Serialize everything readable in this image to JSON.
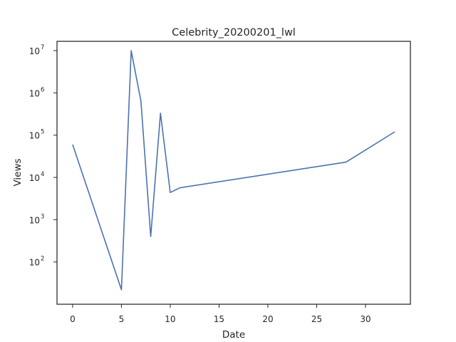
{
  "chart_data": {
    "type": "line",
    "title": "Celebrity_20200201_lwl",
    "xlabel": "Date",
    "ylabel": "Views",
    "yscale": "log",
    "xlim": [
      -1.6,
      34.6
    ],
    "ylim_log10": [
      1.0,
      7.22
    ],
    "xticks": [
      0,
      5,
      10,
      15,
      20,
      25,
      30
    ],
    "yticks": [
      {
        "base": "10",
        "exp": "2",
        "log10": 2
      },
      {
        "base": "10",
        "exp": "3",
        "log10": 3
      },
      {
        "base": "10",
        "exp": "4",
        "log10": 4
      },
      {
        "base": "10",
        "exp": "5",
        "log10": 5
      },
      {
        "base": "10",
        "exp": "6",
        "log10": 6
      },
      {
        "base": "10",
        "exp": "7",
        "log10": 7
      }
    ],
    "grid": false,
    "line_color": "#4c72b0",
    "series": [
      {
        "x": [
          0,
          5,
          6,
          7,
          8,
          9,
          10,
          11,
          28,
          33
        ],
        "y": [
          60000,
          22,
          10000000,
          630000,
          400,
          330000,
          4400,
          5700,
          23000,
          120000
        ]
      }
    ]
  }
}
